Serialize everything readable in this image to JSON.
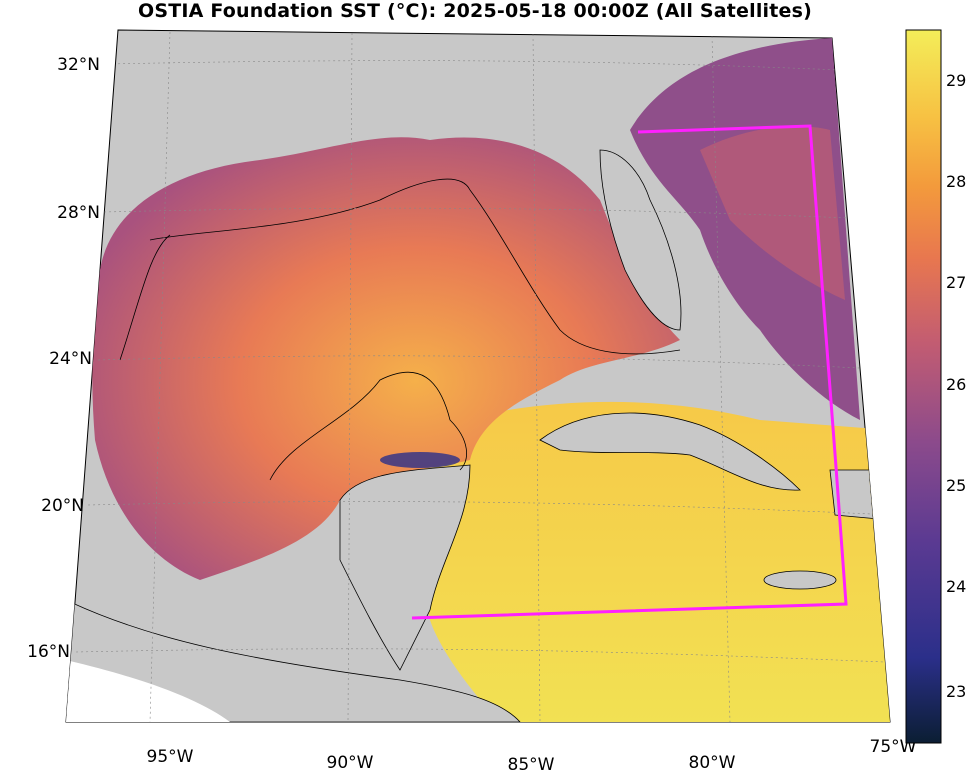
{
  "title": "OSTIA Foundation SST (°C): 2025-05-18 00:00Z (All Satellites)",
  "lat_labels": [
    "32°N",
    "28°N",
    "24°N",
    "20°N",
    "16°N"
  ],
  "lon_labels": [
    "95°W",
    "90°W",
    "85°W",
    "80°W",
    "75°W"
  ],
  "colorbar": {
    "ticks": [
      "29",
      "28",
      "27",
      "26",
      "25",
      "24",
      "23"
    ],
    "colors": [
      "#0b1e33",
      "#2b2f8a",
      "#5a3a92",
      "#8b4a8c",
      "#c25c72",
      "#e8774f",
      "#f39a3c",
      "#f7c243",
      "#f3ed59"
    ]
  },
  "colors": {
    "land": "#c8c8c8",
    "box": "#ff20ff",
    "warm": "#f2d148",
    "cool": "#7b4a9a"
  }
}
